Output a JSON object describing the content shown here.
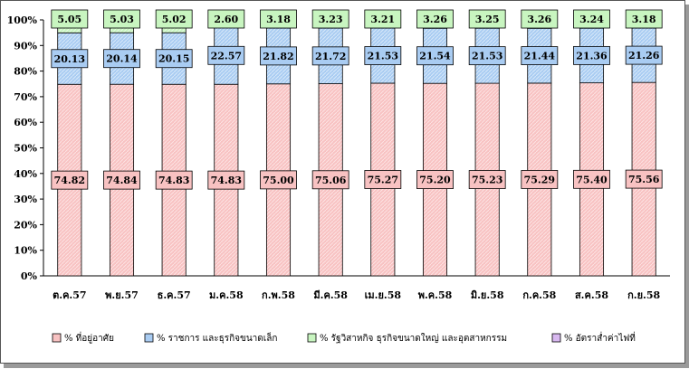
{
  "chart_data": {
    "type": "bar",
    "stacked": true,
    "categories": [
      "ต.ค.57",
      "พ.ย.57",
      "ธ.ค.57",
      "ม.ค.58",
      "ก.พ.58",
      "มี.ค.58",
      "เม.ย.58",
      "พ.ค.58",
      "มิ.ย.58",
      "ก.ค.58",
      "ส.ค.58",
      "ก.ย.58"
    ],
    "series": [
      {
        "name": "% ที่อยู่อาศัย",
        "color": "#f8c2c2",
        "values": [
          74.82,
          74.84,
          74.83,
          74.83,
          75.0,
          75.06,
          75.27,
          75.2,
          75.23,
          75.29,
          75.4,
          75.56
        ]
      },
      {
        "name": "% ราชการ และธุรกิจขนาดเล็ก",
        "color": "#a9ccf2",
        "values": [
          20.13,
          20.14,
          20.15,
          22.57,
          21.82,
          21.72,
          21.53,
          21.54,
          21.53,
          21.44,
          21.36,
          21.26
        ]
      },
      {
        "name": "% รัฐวิสาหกิจ ธุรกิจขนาดใหญ่ และอุตสาหกรรม",
        "color": "#c8f5c0",
        "values": [
          5.05,
          5.03,
          5.02,
          2.6,
          3.18,
          3.23,
          3.21,
          3.26,
          3.25,
          3.26,
          3.24,
          3.18
        ]
      },
      {
        "name": "% อัตราส่ำค่าไฟที่",
        "color": "#d8b8f0",
        "values": [
          0,
          0,
          0,
          0,
          0,
          0,
          0,
          0,
          0,
          0,
          0,
          0
        ]
      }
    ],
    "labels": [
      [
        "74.82",
        "74.84",
        "74.83",
        "74.83",
        "75.00",
        "75.06",
        "75.27",
        "75.20",
        "75.23",
        "75.29",
        "75.40",
        "75.56"
      ],
      [
        "20.13",
        "20.14",
        "20.15",
        "22.57",
        "21.82",
        "21.72",
        "21.53",
        "21.54",
        "21.53",
        "21.44",
        "21.36",
        "21.26"
      ],
      [
        "5.05",
        "5.03",
        "5.02",
        "2.60",
        "3.18",
        "3.23",
        "3.21",
        "3.26",
        "3.25",
        "3.26",
        "3.24",
        "3.18"
      ]
    ],
    "yticks": [
      "0%",
      "10%",
      "20%",
      "30%",
      "40%",
      "50%",
      "60%",
      "70%",
      "80%",
      "90%",
      "100%"
    ],
    "ylim": [
      0,
      100
    ],
    "legend_position": "bottom"
  }
}
